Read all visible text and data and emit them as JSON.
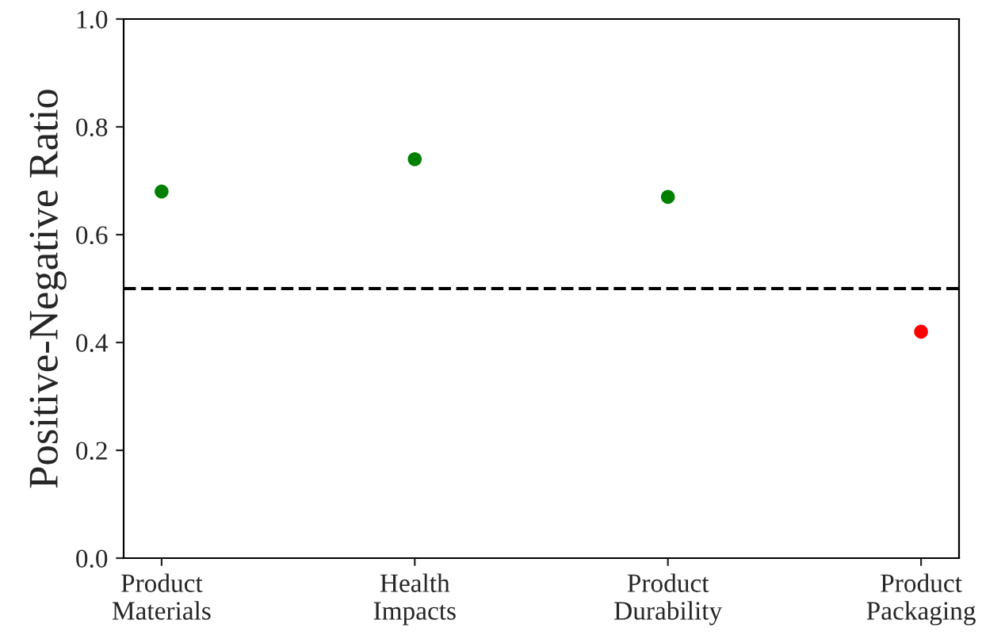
{
  "chart_data": {
    "type": "scatter",
    "ylabel": "Positive-Negative Ratio",
    "categories": [
      "Product\nMaterials",
      "Health\nImpacts",
      "Product\nDurability",
      "Product\nPackaging"
    ],
    "series": [
      {
        "values": [
          0.68,
          0.74,
          0.67,
          0.42
        ],
        "colors": [
          "#008000",
          "#008000",
          "#008000",
          "#ff0000"
        ]
      }
    ],
    "ylim": [
      0.0,
      1.0
    ],
    "yticks": [
      {
        "value": 0.0,
        "label": "0.0"
      },
      {
        "value": 0.2,
        "label": "0.2"
      },
      {
        "value": 0.4,
        "label": "0.4"
      },
      {
        "value": 0.6,
        "label": "0.6"
      },
      {
        "value": 0.8,
        "label": "0.8"
      },
      {
        "value": 1.0,
        "label": "1.0"
      }
    ],
    "ref_lines": [
      {
        "axis": "y",
        "value": 0.5,
        "color": "#000000",
        "line_style": "dashed"
      }
    ],
    "marker": "circle",
    "grid": false
  }
}
